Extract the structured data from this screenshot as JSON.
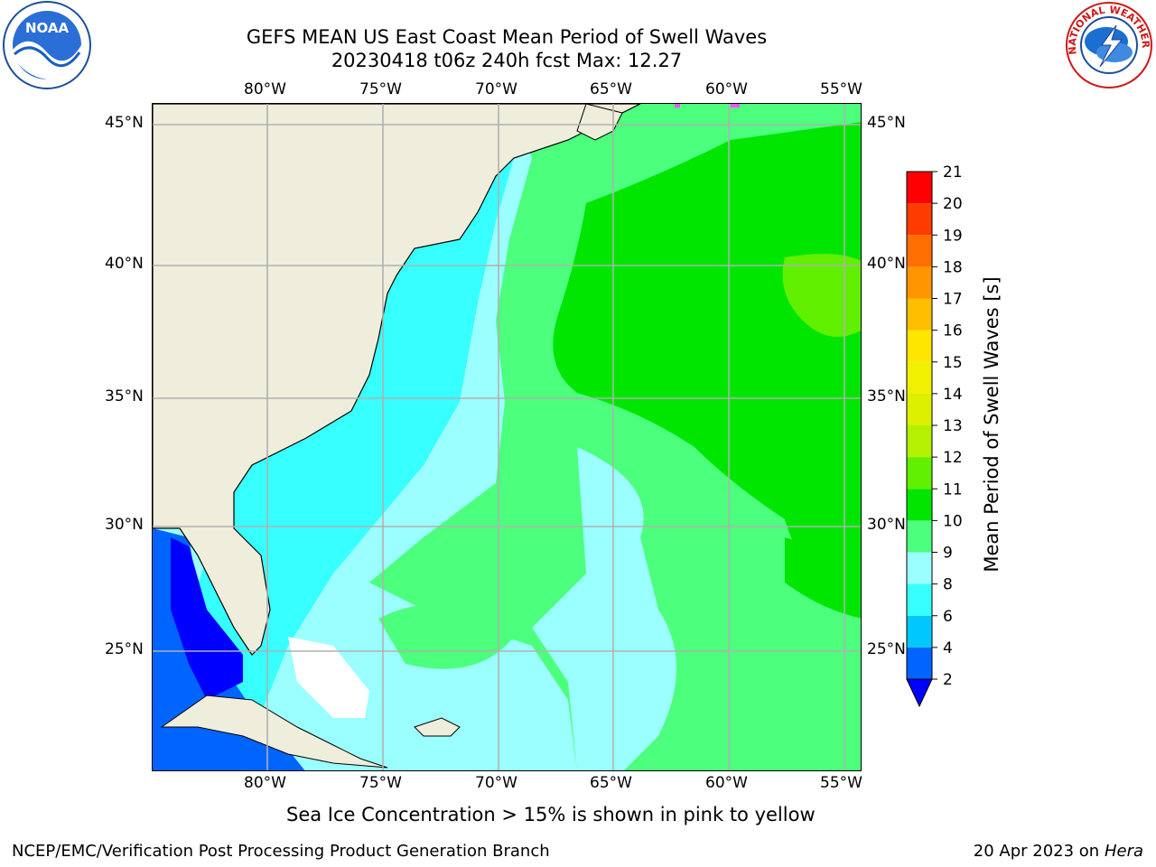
{
  "header": {
    "title_line1": "GEFS MEAN US East Coast Mean Period of Swell Waves",
    "title_line2": "20230418 t06z 240h fcst   Max: 12.27"
  },
  "logos": {
    "left": "noara-logo",
    "left_text": "NOAA",
    "right": "nws-logo",
    "right_text": "NATIONAL WEATHER SERVICE"
  },
  "map": {
    "lon_ticks": [
      "80°W",
      "75°W",
      "70°W",
      "65°W",
      "60°W",
      "55°W"
    ],
    "lat_ticks": [
      "45°N",
      "40°N",
      "35°N",
      "30°N",
      "25°N"
    ],
    "land_color": "#efeedc",
    "grid_color": "#b0b0b0"
  },
  "colorbar": {
    "title": "Mean Period of Swell Waves [s]",
    "levels": [
      "2",
      "4",
      "6",
      "8",
      "9",
      "10",
      "11",
      "12",
      "13",
      "14",
      "15",
      "16",
      "17",
      "18",
      "19",
      "20",
      "21"
    ],
    "colors": [
      "#0064ff",
      "#00c8ff",
      "#38ffff",
      "#9cffff",
      "#4cff7c",
      "#00e600",
      "#60f000",
      "#b4f000",
      "#dcf000",
      "#f0f000",
      "#ffe600",
      "#ffbe00",
      "#ff9600",
      "#ff6e00",
      "#ff3c00",
      "#ff0000"
    ],
    "under_color": "#0000ff"
  },
  "footer": {
    "note": "Sea Ice Concentration > 15% is shown in pink to yellow",
    "left": "NCEP/EMC/Verification Post Processing Product Generation Branch",
    "right_date": "20 Apr 2023 on ",
    "right_host": "Hera"
  }
}
